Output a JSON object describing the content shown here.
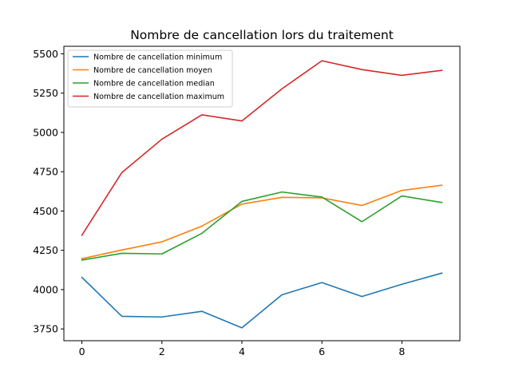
{
  "chart_data": {
    "type": "line",
    "title": "Nombre de cancellation lors du traitement",
    "xlabel": "",
    "ylabel": "",
    "x": [
      0,
      1,
      2,
      3,
      4,
      5,
      6,
      7,
      8,
      9
    ],
    "xlim": [
      -0.45,
      9.45
    ],
    "ylim": [
      3675,
      5548
    ],
    "xticks": [
      0,
      2,
      4,
      6,
      8
    ],
    "yticks": [
      3750,
      4000,
      4250,
      4500,
      4750,
      5000,
      5250,
      5500
    ],
    "grid": false,
    "legend_position": "upper-left",
    "series": [
      {
        "name": "Nombre de cancellation minimum",
        "color": "#1f77b4",
        "values": [
          4078,
          3830,
          3826,
          3862,
          3757,
          3967,
          4045,
          3956,
          4034,
          4105
        ]
      },
      {
        "name": "Nombre de cancellation moyen",
        "color": "#ff7f0e",
        "values": [
          4197,
          4252,
          4304,
          4404,
          4544,
          4587,
          4584,
          4535,
          4631,
          4664
        ]
      },
      {
        "name": "Nombre de cancellation median",
        "color": "#2ca02c",
        "values": [
          4188,
          4231,
          4227,
          4358,
          4561,
          4621,
          4589,
          4432,
          4596,
          4554
        ]
      },
      {
        "name": "Nombre de cancellation maximum",
        "color": "#d62728",
        "values": [
          4346,
          4745,
          4957,
          5112,
          5073,
          5277,
          5456,
          5400,
          5363,
          5395
        ]
      }
    ]
  }
}
